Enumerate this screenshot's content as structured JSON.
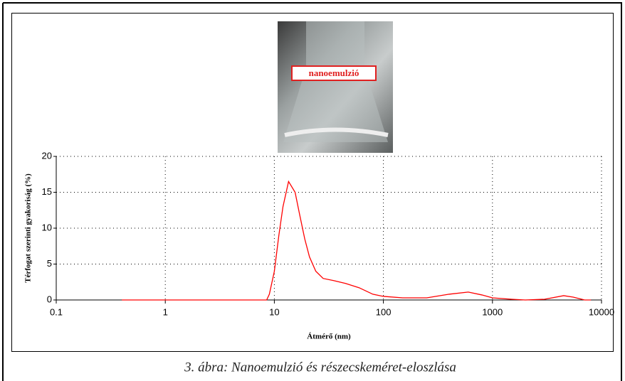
{
  "chart_data": {
    "type": "line",
    "xscale": "log",
    "color": "#ff0000",
    "xlabel": "Átmérő (nm)",
    "ylabel": "Térfogat szerinti gyakoriság (%)",
    "annotation": "nanoemulzió",
    "caption": "3. ábra: Nanoemulzió és részecskeméret-eloszlása",
    "x": [
      0.4,
      1,
      3,
      8.5,
      9,
      10,
      11,
      12,
      13.5,
      15.5,
      17,
      19,
      21,
      24,
      28,
      35,
      45,
      60,
      80,
      100,
      150,
      250,
      400,
      600,
      800,
      1000,
      1500,
      2000,
      3000,
      4500,
      5500,
      7000,
      8000
    ],
    "values": [
      0,
      0,
      0,
      0,
      0.8,
      4,
      9,
      13,
      16.5,
      15,
      12,
      8.5,
      6,
      4,
      3,
      2.7,
      2.3,
      1.7,
      0.8,
      0.5,
      0.3,
      0.3,
      0.8,
      1.1,
      0.7,
      0.3,
      0.1,
      0,
      0.1,
      0.6,
      0.4,
      0,
      0
    ],
    "xlim": [
      0.1,
      10000
    ],
    "xticks": [
      0.1,
      1,
      10,
      100,
      1000,
      10000
    ],
    "ylim": [
      0,
      20
    ],
    "yticks": [
      0,
      5,
      10,
      15,
      20
    ],
    "grid": true
  }
}
